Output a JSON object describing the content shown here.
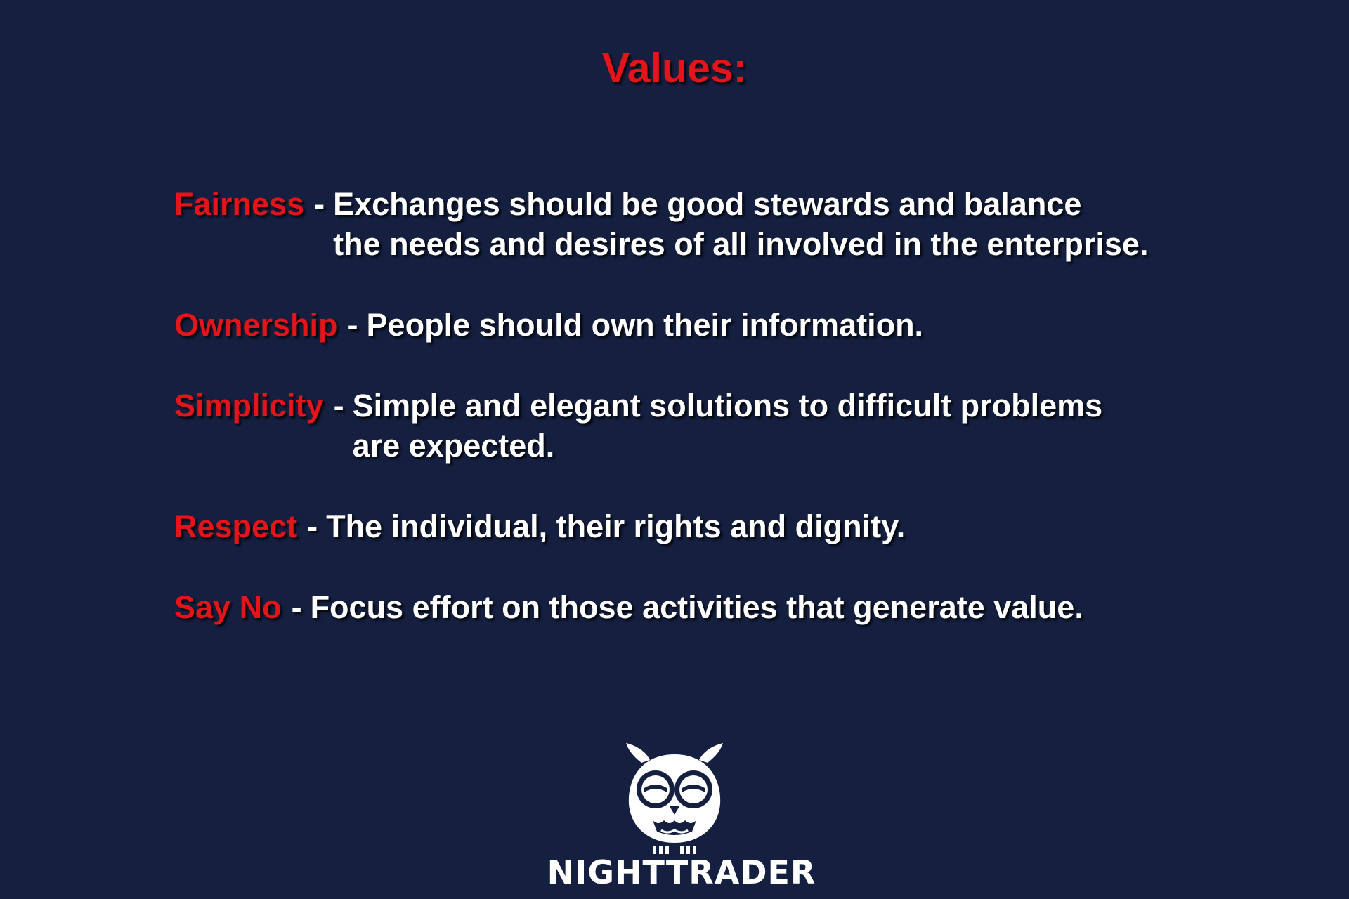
{
  "title": "Values:",
  "values": [
    {
      "term": "Fairness",
      "separator": "-",
      "lines": [
        "Exchanges should be good stewards and balance",
        "the needs and desires of all involved in the enterprise."
      ]
    },
    {
      "term": "Ownership",
      "separator": "-",
      "lines": [
        "People should own their information."
      ]
    },
    {
      "term": "Simplicity",
      "separator": "-",
      "lines": [
        "Simple and elegant solutions to difficult problems",
        "are expected."
      ]
    },
    {
      "term": "Respect",
      "separator": "-",
      "lines": [
        "The individual, their rights and dignity."
      ]
    },
    {
      "term": "Say No",
      "separator": "-",
      "lines": [
        "Focus effort on those activities that generate value."
      ]
    }
  ],
  "logo": {
    "icon": "owl-icon",
    "text": "NIGHTTRADER"
  },
  "colors": {
    "background": "#151f3f",
    "accent": "#e3141a",
    "text": "#ffffff"
  }
}
